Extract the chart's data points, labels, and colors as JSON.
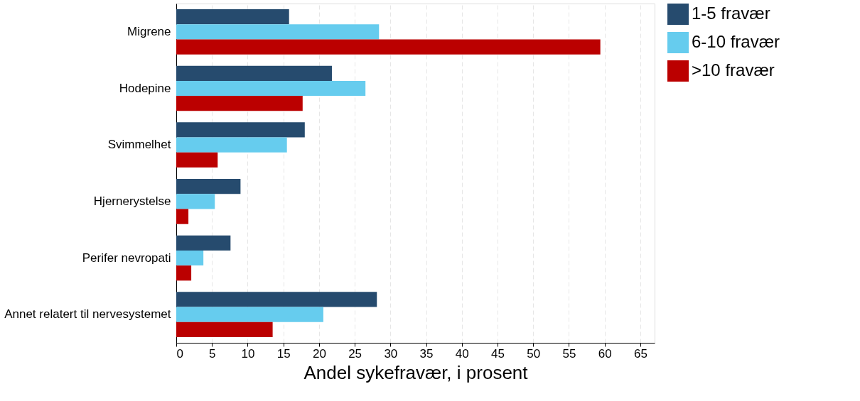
{
  "chart_data": {
    "type": "bar",
    "orientation": "horizontal",
    "xlabel": "Andel sykefravær, i prosent",
    "categories": [
      "Migrene",
      "Hodepine",
      "Svimmelhet",
      "Hjernerystelse",
      "Perifer nevropati",
      "Annet relatert til nervesystemet"
    ],
    "series": [
      {
        "name": "1-5 fravær",
        "color": "#264b6e",
        "values": [
          15.8,
          21.8,
          18.0,
          9.0,
          7.6,
          28.1
        ]
      },
      {
        "name": "6-10 fravær",
        "color": "#66ccee",
        "values": [
          28.4,
          26.5,
          15.5,
          5.4,
          3.8,
          20.6
        ]
      },
      {
        "name": ">10 fravær",
        "color": "#bb0000",
        "values": [
          59.4,
          17.7,
          5.8,
          1.7,
          2.1,
          13.5
        ]
      }
    ],
    "xlim": [
      0,
      67
    ],
    "xticks": [
      0,
      5,
      10,
      15,
      20,
      25,
      30,
      35,
      40,
      45,
      50,
      55,
      60,
      65
    ],
    "grid": "x",
    "legend": "right"
  }
}
